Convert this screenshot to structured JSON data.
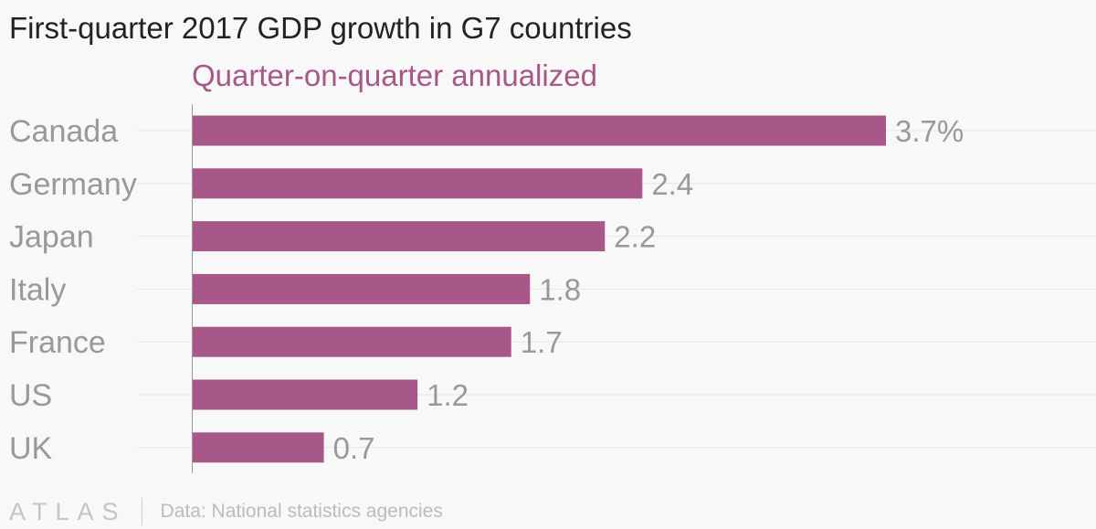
{
  "title": "First-quarter 2017 GDP growth in G7 countries",
  "footer": {
    "logo": "ATLAS",
    "source": "Data: National statistics agencies"
  },
  "colors": {
    "bar": "#a85888",
    "accent": "#a85888",
    "category_text": "#999999",
    "value_text": "#999999",
    "gridline": "#e6e6e6",
    "axis": "#999999"
  },
  "chart_data": {
    "type": "bar",
    "orientation": "horizontal",
    "title": "First-quarter 2017 GDP growth in G7 countries",
    "subtitle": "Quarter-on-quarter annualized",
    "categories": [
      "Canada",
      "Germany",
      "Japan",
      "Italy",
      "France",
      "US",
      "UK"
    ],
    "values": [
      3.7,
      2.4,
      2.2,
      1.8,
      1.7,
      1.2,
      0.7
    ],
    "labels": [
      "3.7%",
      "2.4",
      "2.2",
      "1.8",
      "1.7",
      "1.2",
      "0.7"
    ],
    "unit": "%",
    "xlim": [
      0,
      3.7
    ],
    "grid": true,
    "legend": "none"
  }
}
